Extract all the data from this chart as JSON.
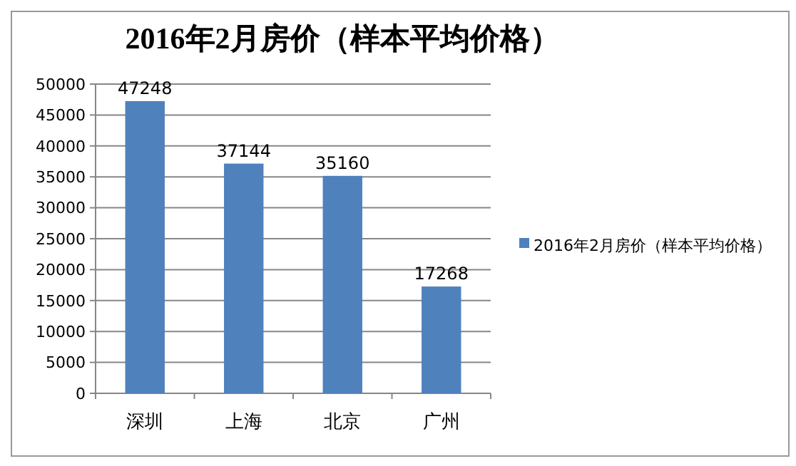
{
  "chart_data": {
    "type": "bar",
    "title": "2016年2月房价（样本平均价格）",
    "categories": [
      "深圳",
      "上海",
      "北京",
      "广州"
    ],
    "series": [
      {
        "name": "2016年2月房价（样本平均价格）",
        "color": "#4f81bd",
        "values": [
          47248,
          37144,
          35160,
          17268
        ]
      }
    ],
    "ylim": [
      0,
      50000
    ],
    "yticks": [
      0,
      5000,
      10000,
      15000,
      20000,
      25000,
      30000,
      35000,
      40000,
      45000,
      50000
    ],
    "grid": "y",
    "legend": "right",
    "data_labels": true
  }
}
